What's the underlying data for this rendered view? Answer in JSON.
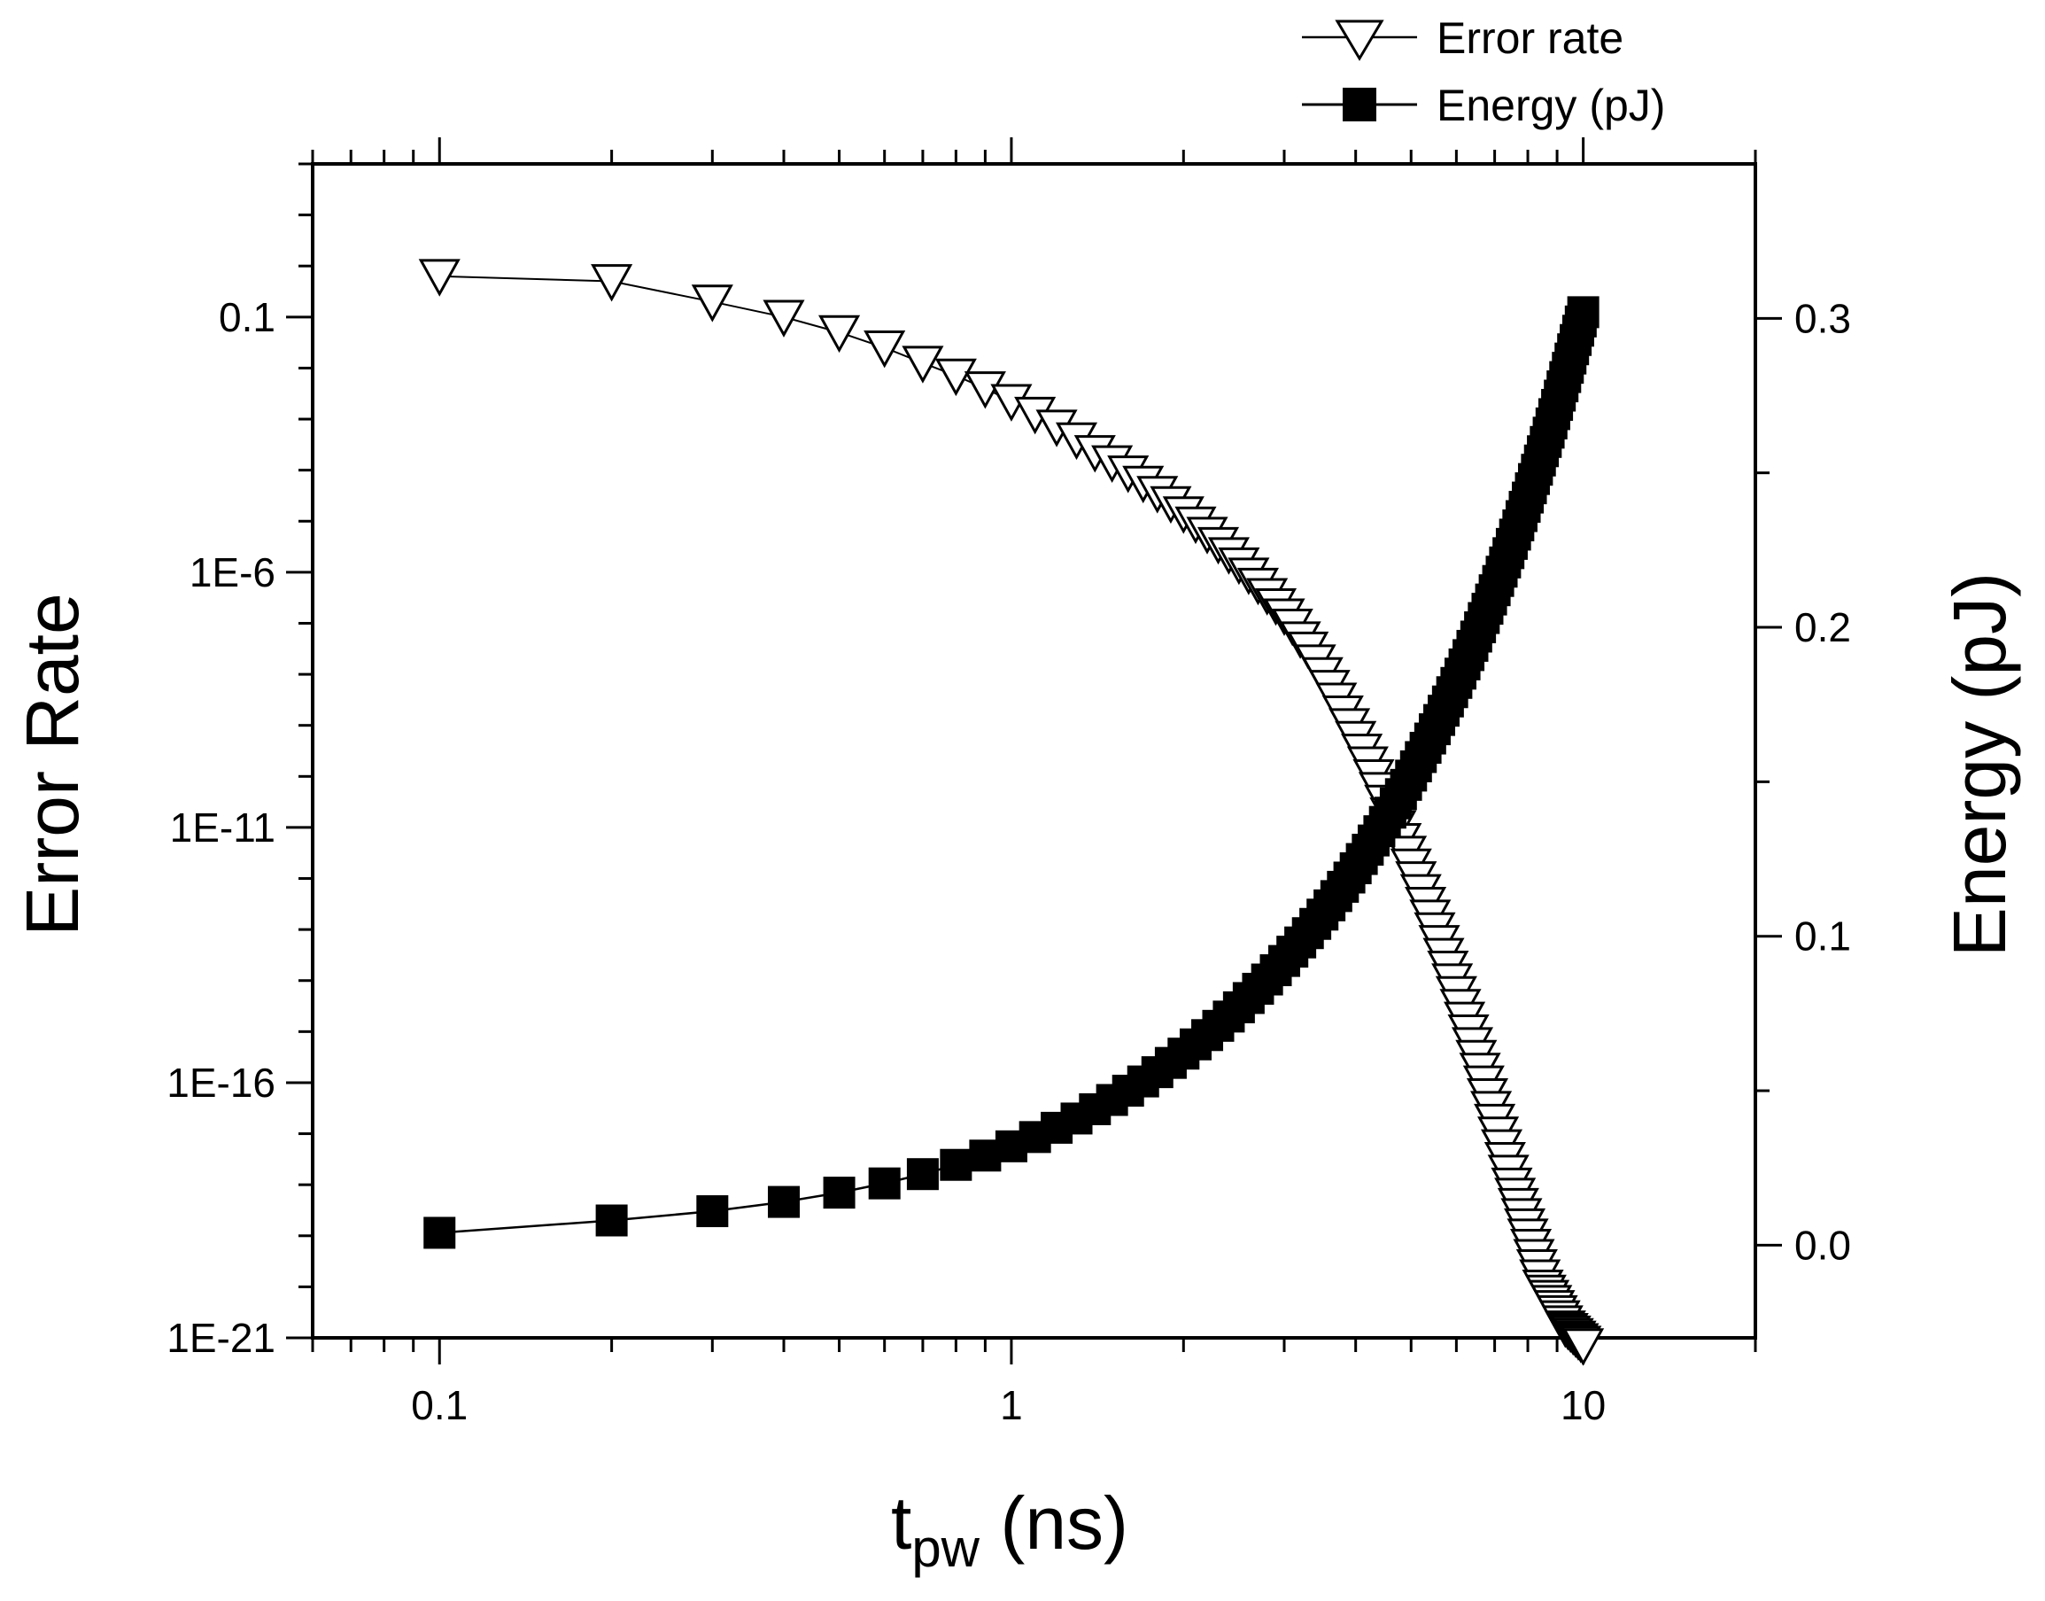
{
  "chart_data": {
    "type": "scatter",
    "x": [
      0.1,
      0.2,
      0.3,
      0.4,
      0.5,
      0.6,
      0.7,
      0.8,
      0.9,
      1.0,
      1.1,
      1.2,
      1.3,
      1.4,
      1.5,
      1.6,
      1.7,
      1.8,
      1.9,
      2.0,
      2.1,
      2.2,
      2.3,
      2.4,
      2.5,
      2.6,
      2.7,
      2.8,
      2.9,
      3.0,
      3.1,
      3.2,
      3.3,
      3.4,
      3.5,
      3.6,
      3.7,
      3.8,
      3.9,
      4.0,
      4.1,
      4.2,
      4.3,
      4.4,
      4.5,
      4.6,
      4.7,
      4.8,
      4.9,
      5.0,
      5.1,
      5.2,
      5.3,
      5.4,
      5.5,
      5.6,
      5.7,
      5.8,
      5.9,
      6.0,
      6.1,
      6.2,
      6.3,
      6.4,
      6.5,
      6.6,
      6.7,
      6.8,
      6.9,
      7.0,
      7.1,
      7.2,
      7.3,
      7.4,
      7.5,
      7.6,
      7.7,
      7.8,
      7.9,
      8.0,
      8.1,
      8.2,
      8.3,
      8.4,
      8.5,
      8.6,
      8.7,
      8.8,
      8.9,
      9.0,
      9.1,
      9.2,
      9.3,
      9.4,
      9.5,
      9.6,
      9.7,
      9.8,
      9.9,
      10.0
    ],
    "series": [
      {
        "name": "Error rate",
        "axis": "left",
        "marker": "open-down-triangle",
        "log10_values": [
          -0.2,
          -0.3,
          -0.7,
          -1.0,
          -1.3,
          -1.6,
          -1.9,
          -2.15,
          -2.4,
          -2.65,
          -2.9,
          -3.15,
          -3.4,
          -3.65,
          -3.85,
          -4.05,
          -4.25,
          -4.45,
          -4.65,
          -4.85,
          -5.05,
          -5.25,
          -5.45,
          -5.65,
          -5.85,
          -6.05,
          -6.25,
          -6.45,
          -6.65,
          -6.85,
          -7.05,
          -7.3,
          -7.5,
          -7.75,
          -8.0,
          -8.25,
          -8.5,
          -8.75,
          -9.0,
          -9.25,
          -9.5,
          -9.75,
          -10.0,
          -10.25,
          -10.5,
          -10.75,
          -11.0,
          -11.25,
          -11.5,
          -11.75,
          -12.0,
          -12.25,
          -12.5,
          -12.75,
          -13.0,
          -13.25,
          -13.5,
          -13.75,
          -14.0,
          -14.25,
          -14.5,
          -14.75,
          -15.0,
          -15.25,
          -15.5,
          -15.75,
          -16.0,
          -16.25,
          -16.5,
          -16.75,
          -17.0,
          -17.25,
          -17.5,
          -17.75,
          -18.0,
          -18.2,
          -18.4,
          -18.6,
          -18.8,
          -19.0,
          -19.2,
          -19.4,
          -19.6,
          -19.8,
          -20.0,
          -20.1,
          -20.2,
          -20.3,
          -20.4,
          -20.5,
          -20.6,
          -20.7,
          -20.8,
          -20.85,
          -20.9,
          -20.95,
          -21.0,
          -21.05,
          -21.1,
          -21.15
        ]
      },
      {
        "name": "Energy (pJ)",
        "axis": "right",
        "marker": "filled-square",
        "values": [
          0.004,
          0.008,
          0.011,
          0.014,
          0.017,
          0.02,
          0.023,
          0.026,
          0.029,
          0.032,
          0.035,
          0.038,
          0.041,
          0.044,
          0.047,
          0.05,
          0.053,
          0.056,
          0.059,
          0.062,
          0.065,
          0.068,
          0.071,
          0.074,
          0.077,
          0.08,
          0.083,
          0.086,
          0.089,
          0.092,
          0.095,
          0.098,
          0.101,
          0.104,
          0.107,
          0.11,
          0.113,
          0.116,
          0.119,
          0.122,
          0.125,
          0.128,
          0.131,
          0.134,
          0.137,
          0.14,
          0.143,
          0.146,
          0.149,
          0.152,
          0.155,
          0.158,
          0.161,
          0.164,
          0.167,
          0.17,
          0.173,
          0.176,
          0.179,
          0.182,
          0.185,
          0.188,
          0.191,
          0.194,
          0.197,
          0.2,
          0.203,
          0.206,
          0.209,
          0.212,
          0.215,
          0.218,
          0.221,
          0.224,
          0.227,
          0.23,
          0.233,
          0.236,
          0.239,
          0.242,
          0.245,
          0.248,
          0.251,
          0.254,
          0.257,
          0.26,
          0.263,
          0.266,
          0.269,
          0.272,
          0.275,
          0.278,
          0.281,
          0.284,
          0.287,
          0.29,
          0.293,
          0.296,
          0.299,
          0.302
        ]
      }
    ],
    "xlabel_main": "t",
    "xlabel_sub": "pw",
    "xlabel_unit": " (ns)",
    "ylabel_left": "Error Rate",
    "ylabel_right": "Energy (pJ)",
    "x_scale": "log",
    "xlim": [
      0.06,
      20
    ],
    "ylim_left_log10": [
      -21,
      2
    ],
    "ylim_right": [
      -0.03,
      0.35
    ],
    "x_ticks": [
      0.1,
      1,
      10
    ],
    "x_tick_labels": [
      "0.1",
      "1",
      "10"
    ],
    "left_ticks_log10": [
      -1,
      -6,
      -11,
      -16,
      -21
    ],
    "left_tick_labels": [
      "0.1",
      "1E-6",
      "1E-11",
      "1E-16",
      "1E-21"
    ],
    "right_ticks": [
      0.0,
      0.1,
      0.2,
      0.3
    ],
    "right_tick_labels": [
      "0.0",
      "0.1",
      "0.2",
      "0.3"
    ],
    "legend": [
      "Error rate",
      "Energy (pJ)"
    ],
    "legend_position": "top-right",
    "grid": false
  }
}
